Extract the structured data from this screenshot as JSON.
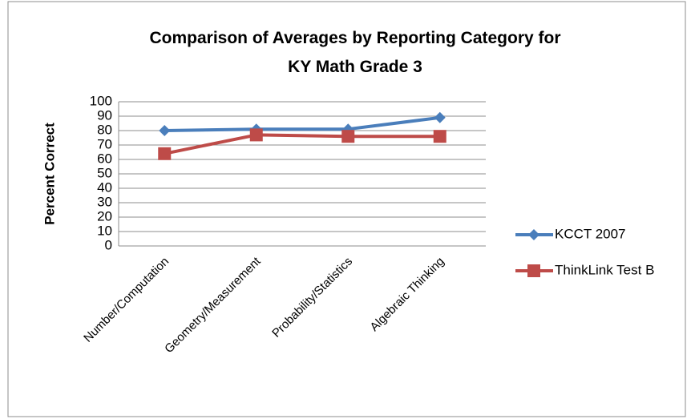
{
  "chart_data": {
    "type": "line",
    "title": [
      "Comparison of Averages by Reporting Category for",
      "KY Math Grade 3"
    ],
    "y_label": "Percent Correct",
    "categories": [
      "Number/Computation",
      "Geometry/Measurement",
      "Probability/Statistics",
      "Algebraic Thinking"
    ],
    "series": [
      {
        "name": "KCCT 2007",
        "color": "#4a7ebb",
        "marker": "diamond",
        "values": [
          80,
          81,
          81,
          89
        ]
      },
      {
        "name": "ThinkLink Test B",
        "color": "#be4b48",
        "marker": "square",
        "values": [
          64,
          77,
          76,
          76
        ]
      }
    ],
    "ylim": [
      0,
      100
    ],
    "yticks": [
      0,
      10,
      20,
      30,
      40,
      50,
      60,
      70,
      80,
      90,
      100
    ],
    "grid": true,
    "legend": "right"
  }
}
